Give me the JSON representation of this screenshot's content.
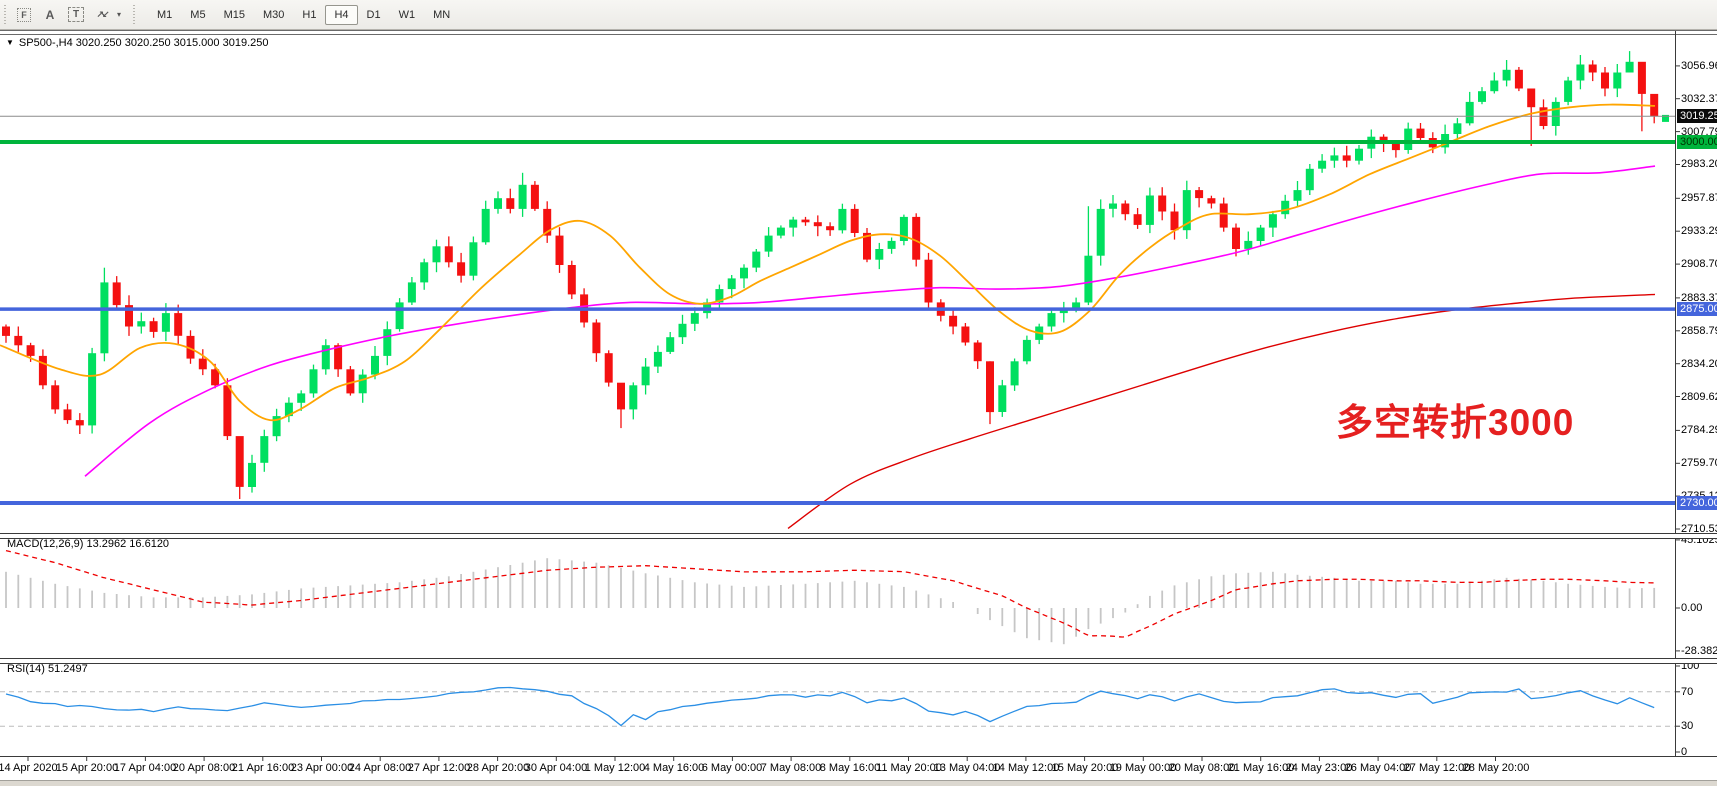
{
  "toolbar": {
    "tools": [
      {
        "name": "indicator-f-icon",
        "glyph": "F",
        "box": "dotted"
      },
      {
        "name": "text-a-icon",
        "glyph": "A",
        "box": "none"
      },
      {
        "name": "textbox-t-icon",
        "glyph": "T",
        "box": "dashed"
      },
      {
        "name": "arrows-tool-icon",
        "glyph": "↗↙",
        "box": "arrows"
      }
    ],
    "dropdown_glyph": "▾",
    "timeframes": [
      "M1",
      "M5",
      "M15",
      "M30",
      "H1",
      "H4",
      "D1",
      "W1",
      "MN"
    ],
    "active_timeframe": "H4"
  },
  "header": {
    "dropdown_glyph": "▼",
    "title": "SP500-,H4  3020.250 3020.250 3015.000 3019.250"
  },
  "annotation": {
    "text": "多空转折3000",
    "color": "#e52020"
  },
  "panels": {
    "macd_label": "MACD(12,26,9) 13.2962 16.6120",
    "rsi_label": "RSI(14) 51.2497"
  },
  "colors": {
    "candle_up": "#00df5f",
    "candle_down": "#f41111",
    "ma_fast": "#ffa500",
    "ma_mid": "#ff00ff",
    "ma_slow": "#dd0000",
    "level_green": "#00b43c",
    "level_blue": "#4465dc",
    "current_line": "#8c8c8c",
    "current_label_bg": "#0b0b0b",
    "macd_hist": "#c6c6c6",
    "macd_signal": "#ee0000",
    "rsi_line": "#2b8fe5",
    "rsi_level_dash": "#bcbcbc"
  },
  "chart_data": {
    "type": "candlestick",
    "symbol": "SP500-",
    "timeframe": "H4",
    "ohlc_current": {
      "open": 3020.25,
      "high": 3020.25,
      "low": 3015.0,
      "close": 3019.25
    },
    "price_axis": {
      "min": 2710.535,
      "max": 3082.29,
      "ticks": [
        3082.29,
        3056.96,
        3032.375,
        3007.79,
        2983.205,
        2957.875,
        2933.29,
        2908.705,
        2883.375,
        2858.79,
        2834.205,
        2809.62,
        2784.29,
        2759.705,
        2735.12,
        2710.535
      ]
    },
    "levels": [
      {
        "price": 3019.25,
        "label": "3019.250",
        "kind": "current",
        "line_color": "#8c8c8c",
        "bg": "#0b0b0b",
        "fg": "#ffffff",
        "width": 1
      },
      {
        "price": 3000.0,
        "label": "3000.000",
        "kind": "hline",
        "line_color": "#00b43c",
        "bg": "#00b43c",
        "fg": "#003300",
        "width": 4
      },
      {
        "price": 2875.0,
        "label": "2875.000",
        "kind": "hline",
        "line_color": "#4465dc",
        "bg": "#4465dc",
        "fg": "#ffffff",
        "width": 3.5
      },
      {
        "price": 2730.0,
        "label": "2730.000",
        "kind": "hline",
        "line_color": "#4465dc",
        "bg": "#4465dc",
        "fg": "#ffffff",
        "width": 4
      }
    ],
    "time_axis": [
      "14 Apr 2020",
      "15 Apr 20:00",
      "17 Apr 04:00",
      "20 Apr 08:00",
      "21 Apr 16:00",
      "23 Apr 00:00",
      "24 Apr 08:00",
      "27 Apr 12:00",
      "28 Apr 20:00",
      "30 Apr 04:00",
      "1 May 12:00",
      "4 May 16:00",
      "6 May 00:00",
      "7 May 08:00",
      "8 May 16:00",
      "11 May 20:00",
      "13 May 04:00",
      "14 May 12:00",
      "15 May 20:00",
      "19 May 00:00",
      "20 May 08:00",
      "21 May 16:00",
      "24 May 23:00",
      "26 May 04:00",
      "27 May 12:00",
      "28 May 20:00"
    ],
    "candles": {
      "open_first": 2862,
      "closes": [
        2855,
        2848,
        2840,
        2818,
        2800,
        2792,
        2788,
        2842,
        2895,
        2878,
        2862,
        2866,
        2858,
        2872,
        2855,
        2838,
        2830,
        2818,
        2780,
        2742,
        2760,
        2780,
        2795,
        2805,
        2812,
        2830,
        2848,
        2830,
        2812,
        2826,
        2840,
        2860,
        2880,
        2895,
        2910,
        2922,
        2910,
        2900,
        2925,
        2950,
        2958,
        2950,
        2968,
        2950,
        2930,
        2908,
        2886,
        2865,
        2842,
        2820,
        2800,
        2818,
        2832,
        2843,
        2854,
        2864,
        2872,
        2880,
        2890,
        2898,
        2906,
        2918,
        2930,
        2936,
        2942,
        2940,
        2937,
        2934,
        2950,
        2932,
        2912,
        2920,
        2926,
        2944,
        2912,
        2880,
        2870,
        2862,
        2850,
        2836,
        2798,
        2818,
        2836,
        2852,
        2862,
        2872,
        2876,
        2880,
        2915,
        2950,
        2954,
        2946,
        2938,
        2960,
        2948,
        2934,
        2964,
        2958,
        2954,
        2936,
        2920,
        2926,
        2936,
        2946,
        2956,
        2964,
        2980,
        2986,
        2990,
        2986,
        2995,
        3004,
        2999,
        2994,
        3010,
        3003,
        2996,
        3006,
        3014,
        3030,
        3038,
        3046,
        3054,
        3040,
        3026,
        3012,
        3030,
        3046,
        3058,
        3052,
        3040,
        3052,
        3060,
        3036,
        3019.25
      ],
      "wick_overrides": [
        [
          7,
          2846,
          2782
        ],
        [
          8,
          2906,
          2836
        ],
        [
          19,
          2757,
          2733
        ],
        [
          42,
          2977,
          2944
        ],
        [
          50,
          2818,
          2786
        ],
        [
          80,
          2836,
          2789
        ],
        [
          88,
          2952,
          2878
        ],
        [
          124,
          3030,
          2997
        ],
        [
          132,
          3068,
          3052
        ],
        [
          133,
          3040,
          3008
        ],
        [
          134,
          3022,
          3014
        ]
      ]
    },
    "ma_fast_anchors": [
      [
        0,
        2848
      ],
      [
        60,
        2830
      ],
      [
        100,
        2826
      ],
      [
        140,
        2846
      ],
      [
        175,
        2849
      ],
      [
        210,
        2836
      ],
      [
        240,
        2806
      ],
      [
        270,
        2792
      ],
      [
        300,
        2800
      ],
      [
        335,
        2816
      ],
      [
        370,
        2824
      ],
      [
        405,
        2836
      ],
      [
        440,
        2860
      ],
      [
        480,
        2890
      ],
      [
        520,
        2916
      ],
      [
        550,
        2934
      ],
      [
        580,
        2941
      ],
      [
        610,
        2930
      ],
      [
        640,
        2906
      ],
      [
        670,
        2886
      ],
      [
        700,
        2879
      ],
      [
        730,
        2884
      ],
      [
        760,
        2896
      ],
      [
        790,
        2906
      ],
      [
        820,
        2916
      ],
      [
        850,
        2926
      ],
      [
        880,
        2931
      ],
      [
        910,
        2928
      ],
      [
        940,
        2915
      ],
      [
        970,
        2894
      ],
      [
        1000,
        2873
      ],
      [
        1030,
        2859
      ],
      [
        1060,
        2858
      ],
      [
        1090,
        2874
      ],
      [
        1120,
        2901
      ],
      [
        1150,
        2921
      ],
      [
        1180,
        2936
      ],
      [
        1210,
        2946
      ],
      [
        1250,
        2946
      ],
      [
        1290,
        2950
      ],
      [
        1330,
        2961
      ],
      [
        1370,
        2976
      ],
      [
        1410,
        2988
      ],
      [
        1450,
        3000
      ],
      [
        1490,
        3012
      ],
      [
        1530,
        3021
      ],
      [
        1570,
        3026
      ],
      [
        1610,
        3028
      ],
      [
        1655,
        3027
      ]
    ],
    "ma_mid_anchors": [
      [
        85,
        2750
      ],
      [
        150,
        2790
      ],
      [
        210,
        2815
      ],
      [
        270,
        2833
      ],
      [
        330,
        2845
      ],
      [
        390,
        2855
      ],
      [
        450,
        2863
      ],
      [
        510,
        2870
      ],
      [
        570,
        2876
      ],
      [
        630,
        2880
      ],
      [
        700,
        2879
      ],
      [
        760,
        2880
      ],
      [
        820,
        2884
      ],
      [
        880,
        2888
      ],
      [
        940,
        2891
      ],
      [
        1000,
        2890
      ],
      [
        1060,
        2892
      ],
      [
        1120,
        2899
      ],
      [
        1180,
        2908
      ],
      [
        1240,
        2918
      ],
      [
        1300,
        2931
      ],
      [
        1360,
        2944
      ],
      [
        1420,
        2956
      ],
      [
        1480,
        2967
      ],
      [
        1540,
        2976
      ],
      [
        1600,
        2977
      ],
      [
        1655,
        2982
      ]
    ],
    "ma_slow_anchors": [
      [
        788,
        2711
      ],
      [
        850,
        2744
      ],
      [
        910,
        2763
      ],
      [
        970,
        2778
      ],
      [
        1030,
        2792
      ],
      [
        1090,
        2806
      ],
      [
        1150,
        2820
      ],
      [
        1210,
        2834
      ],
      [
        1270,
        2847
      ],
      [
        1330,
        2858
      ],
      [
        1390,
        2867
      ],
      [
        1450,
        2874
      ],
      [
        1510,
        2879
      ],
      [
        1570,
        2883
      ],
      [
        1655,
        2886
      ]
    ],
    "macd": {
      "current_macd": 13.2962,
      "current_signal": 16.612,
      "axis": [
        [
          "45.1025",
          45.1025
        ],
        [
          "0.00",
          0.0
        ],
        [
          "-28.3821",
          -28.3821
        ]
      ],
      "anchors": [
        [
          0,
          24,
          38
        ],
        [
          4,
          16,
          30
        ],
        [
          8,
          10,
          20
        ],
        [
          12,
          7,
          12
        ],
        [
          16,
          7,
          4
        ],
        [
          20,
          9,
          2
        ],
        [
          24,
          13,
          5
        ],
        [
          28,
          15,
          9
        ],
        [
          32,
          17,
          13
        ],
        [
          36,
          21,
          17
        ],
        [
          40,
          27,
          21
        ],
        [
          44,
          33,
          25
        ],
        [
          48,
          30,
          27
        ],
        [
          52,
          23,
          28
        ],
        [
          56,
          17,
          26
        ],
        [
          60,
          14,
          24
        ],
        [
          65,
          16,
          24
        ],
        [
          69,
          18,
          25
        ],
        [
          73,
          14,
          24
        ],
        [
          77,
          4,
          18
        ],
        [
          81,
          -12,
          8
        ],
        [
          83,
          -20,
          0
        ],
        [
          86,
          -24,
          -10
        ],
        [
          88,
          -14,
          -18
        ],
        [
          91,
          -3,
          -19
        ],
        [
          93,
          8,
          -12
        ],
        [
          95,
          15,
          -4
        ],
        [
          98,
          21,
          5
        ],
        [
          100,
          23,
          12
        ],
        [
          103,
          24,
          16
        ],
        [
          105,
          22,
          18
        ],
        [
          108,
          20,
          19
        ],
        [
          110,
          18,
          19
        ],
        [
          113,
          18,
          18
        ],
        [
          115,
          16,
          18
        ],
        [
          118,
          16,
          17
        ],
        [
          120,
          18,
          17
        ],
        [
          122,
          20,
          18
        ],
        [
          125,
          18,
          19
        ],
        [
          127,
          16,
          19
        ],
        [
          130,
          14,
          18
        ],
        [
          132,
          13,
          17
        ],
        [
          134,
          13.3,
          16.6
        ]
      ]
    },
    "rsi": {
      "current": 51.2497,
      "axis": [
        [
          "100",
          100
        ],
        [
          "70",
          70
        ],
        [
          "30",
          30
        ],
        [
          "0",
          0
        ]
      ],
      "dash_levels": [
        70,
        30
      ],
      "anchors": [
        [
          0,
          66
        ],
        [
          2,
          60
        ],
        [
          4,
          55
        ],
        [
          7,
          52
        ],
        [
          9,
          50
        ],
        [
          12,
          48
        ],
        [
          14,
          52
        ],
        [
          17,
          48
        ],
        [
          19,
          50
        ],
        [
          21,
          56
        ],
        [
          24,
          52
        ],
        [
          26,
          54
        ],
        [
          29,
          58
        ],
        [
          31,
          60
        ],
        [
          34,
          64
        ],
        [
          36,
          68
        ],
        [
          39,
          72
        ],
        [
          41,
          76
        ],
        [
          43,
          72
        ],
        [
          46,
          64
        ],
        [
          48,
          50
        ],
        [
          50,
          32
        ],
        [
          51,
          42
        ],
        [
          52,
          38
        ],
        [
          53,
          48
        ],
        [
          56,
          54
        ],
        [
          58,
          58
        ],
        [
          60,
          62
        ],
        [
          63,
          66
        ],
        [
          65,
          64
        ],
        [
          68,
          68
        ],
        [
          70,
          58
        ],
        [
          73,
          62
        ],
        [
          75,
          48
        ],
        [
          77,
          42
        ],
        [
          78,
          46
        ],
        [
          80,
          36
        ],
        [
          82,
          48
        ],
        [
          83,
          52
        ],
        [
          85,
          56
        ],
        [
          87,
          58
        ],
        [
          89,
          70
        ],
        [
          90,
          68
        ],
        [
          92,
          62
        ],
        [
          93,
          66
        ],
        [
          95,
          60
        ],
        [
          97,
          68
        ],
        [
          98,
          64
        ],
        [
          100,
          56
        ],
        [
          102,
          58
        ],
        [
          103,
          62
        ],
        [
          105,
          66
        ],
        [
          106,
          70
        ],
        [
          108,
          72
        ],
        [
          110,
          68
        ],
        [
          111,
          70
        ],
        [
          113,
          64
        ],
        [
          115,
          68
        ],
        [
          116,
          58
        ],
        [
          118,
          64
        ],
        [
          119,
          68
        ],
        [
          121,
          70
        ],
        [
          123,
          72
        ],
        [
          124,
          62
        ],
        [
          126,
          66
        ],
        [
          128,
          70
        ],
        [
          129,
          64
        ],
        [
          131,
          56
        ],
        [
          132,
          62
        ],
        [
          134,
          51.2
        ]
      ]
    }
  }
}
